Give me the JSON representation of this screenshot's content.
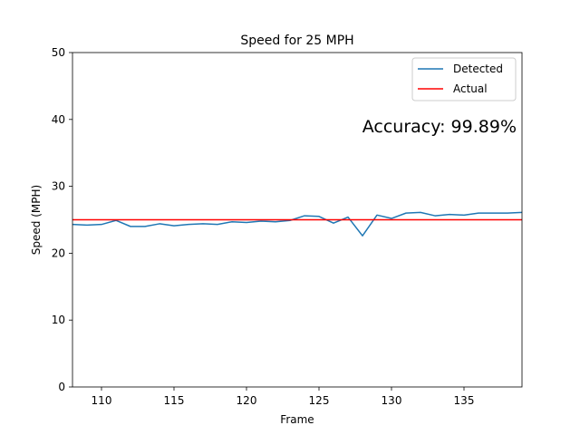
{
  "chart_data": {
    "type": "line",
    "title": "Speed for 25 MPH",
    "xlabel": "Frame",
    "ylabel": "Speed (MPH)",
    "xlim": [
      108,
      139
    ],
    "ylim": [
      0,
      50
    ],
    "xticks": [
      110,
      115,
      120,
      125,
      130,
      135
    ],
    "yticks": [
      0,
      10,
      20,
      30,
      40,
      50
    ],
    "grid": false,
    "legend_position": "top-right",
    "annotation": "Accuracy: 99.89%",
    "series": [
      {
        "name": "Detected",
        "color": "#1f77b4",
        "x": [
          108,
          109,
          110,
          111,
          112,
          113,
          114,
          115,
          116,
          117,
          118,
          119,
          120,
          121,
          122,
          123,
          124,
          125,
          126,
          127,
          128,
          129,
          130,
          131,
          132,
          133,
          134,
          135,
          136,
          137,
          138,
          139
        ],
        "y": [
          24.3,
          24.2,
          24.3,
          24.9,
          24.0,
          24.0,
          24.4,
          24.1,
          24.3,
          24.4,
          24.3,
          24.7,
          24.6,
          24.8,
          24.7,
          24.9,
          25.6,
          25.5,
          24.5,
          25.4,
          22.6,
          25.7,
          25.2,
          26.0,
          26.1,
          25.6,
          25.8,
          25.7,
          26.0,
          26.0,
          26.0,
          26.1
        ]
      },
      {
        "name": "Actual",
        "color": "#ff0000",
        "x": [
          108,
          139
        ],
        "y": [
          25,
          25
        ]
      }
    ]
  }
}
